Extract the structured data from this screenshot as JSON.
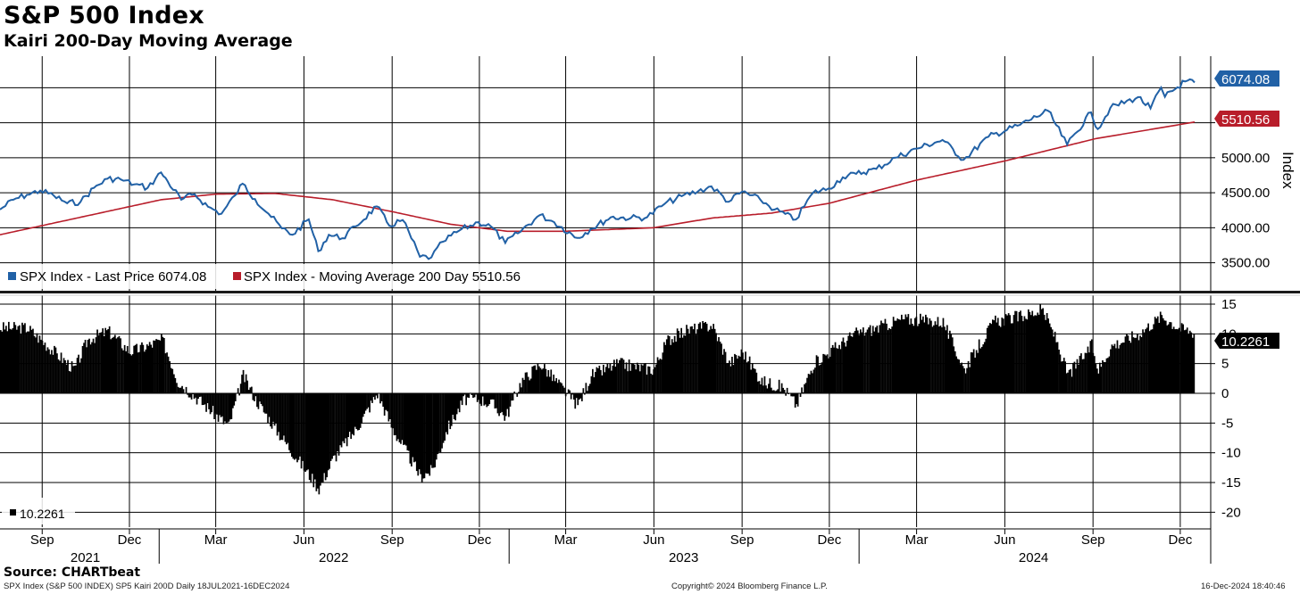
{
  "header": {
    "title": "S&P 500 Index",
    "subtitle": "Kairi 200-Day Moving Average"
  },
  "footer": {
    "source": "Source: CHARTbeat",
    "left": "SPX Index (S&P 500 INDEX) SP5 Kairi 200D  Daily 18JUL2021-16DEC2024",
    "center": "Copyright© 2024 Bloomberg Finance L.P.",
    "right": "16-Dec-2024 18:40:46"
  },
  "colors": {
    "price": "#2161a6",
    "moving_average": "#b81d2a",
    "kairi": "#000000",
    "grid": "#000000"
  },
  "chart_data": [
    {
      "type": "line",
      "x_range": [
        "2021-07-19",
        "2024-12-16"
      ],
      "ylabel": "Index",
      "ylim": [
        3100,
        6450
      ],
      "yticks": [
        3500,
        4000,
        4500,
        5000,
        5500,
        6000
      ],
      "ytick_labels": [
        "3500.00",
        "4000.00",
        "4500.00",
        "5000.00",
        "",
        ""
      ],
      "grid": true,
      "legend_position": "bottom-left",
      "series": [
        {
          "name": "SPX Index - Last Price 6074.08",
          "last_value_label": "6074.08",
          "points": [
            [
              "2021-07-19",
              4260
            ],
            [
              "2021-08-02",
              4400
            ],
            [
              "2021-08-16",
              4470
            ],
            [
              "2021-08-30",
              4530
            ],
            [
              "2021-09-13",
              4460
            ],
            [
              "2021-09-27",
              4350
            ],
            [
              "2021-10-11",
              4370
            ],
            [
              "2021-10-25",
              4570
            ],
            [
              "2021-11-08",
              4700
            ],
            [
              "2021-11-22",
              4690
            ],
            [
              "2021-12-06",
              4620
            ],
            [
              "2021-12-20",
              4570
            ],
            [
              "2022-01-03",
              4790
            ],
            [
              "2022-01-10",
              4660
            ],
            [
              "2022-01-24",
              4400
            ],
            [
              "2022-02-07",
              4480
            ],
            [
              "2022-02-21",
              4300
            ],
            [
              "2022-03-07",
              4200
            ],
            [
              "2022-03-21",
              4460
            ],
            [
              "2022-03-29",
              4630
            ],
            [
              "2022-04-11",
              4410
            ],
            [
              "2022-04-25",
              4200
            ],
            [
              "2022-05-09",
              3990
            ],
            [
              "2022-05-20",
              3900
            ],
            [
              "2022-06-06",
              4120
            ],
            [
              "2022-06-16",
              3666
            ],
            [
              "2022-06-27",
              3900
            ],
            [
              "2022-07-11",
              3850
            ],
            [
              "2022-07-25",
              4020
            ],
            [
              "2022-08-16",
              4305
            ],
            [
              "2022-08-29",
              4030
            ],
            [
              "2022-09-12",
              4110
            ],
            [
              "2022-09-30",
              3585
            ],
            [
              "2022-10-12",
              3577
            ],
            [
              "2022-10-24",
              3800
            ],
            [
              "2022-11-10",
              3960
            ],
            [
              "2022-11-30",
              4080
            ],
            [
              "2022-12-13",
              4020
            ],
            [
              "2022-12-28",
              3783
            ],
            [
              "2023-01-10",
              3920
            ],
            [
              "2023-02-02",
              4180
            ],
            [
              "2023-02-17",
              4080
            ],
            [
              "2023-03-13",
              3855
            ],
            [
              "2023-03-27",
              3980
            ],
            [
              "2023-04-17",
              4150
            ],
            [
              "2023-05-08",
              4140
            ],
            [
              "2023-05-25",
              4150
            ],
            [
              "2023-06-12",
              4340
            ],
            [
              "2023-06-30",
              4450
            ],
            [
              "2023-07-17",
              4520
            ],
            [
              "2023-07-31",
              4590
            ],
            [
              "2023-08-18",
              4370
            ],
            [
              "2023-09-01",
              4515
            ],
            [
              "2023-09-20",
              4400
            ],
            [
              "2023-10-05",
              4260
            ],
            [
              "2023-10-27",
              4117
            ],
            [
              "2023-11-14",
              4500
            ],
            [
              "2023-11-30",
              4560
            ],
            [
              "2023-12-15",
              4720
            ],
            [
              "2023-12-29",
              4770
            ],
            [
              "2024-01-19",
              4840
            ],
            [
              "2024-02-08",
              5000
            ],
            [
              "2024-03-01",
              5130
            ],
            [
              "2024-03-28",
              5254
            ],
            [
              "2024-04-19",
              4970
            ],
            [
              "2024-05-15",
              5300
            ],
            [
              "2024-06-17",
              5470
            ],
            [
              "2024-07-16",
              5670
            ],
            [
              "2024-08-05",
              5186
            ],
            [
              "2024-08-30",
              5648
            ],
            [
              "2024-09-06",
              5408
            ],
            [
              "2024-09-19",
              5710
            ],
            [
              "2024-10-18",
              5865
            ],
            [
              "2024-10-31",
              5705
            ],
            [
              "2024-11-11",
              6001
            ],
            [
              "2024-11-15",
              5870
            ],
            [
              "2024-12-06",
              6090
            ],
            [
              "2024-12-16",
              6074
            ]
          ]
        },
        {
          "name": "SPX Index - Moving Average 200 Day 5510.56",
          "last_value_label": "5510.56",
          "points": [
            [
              "2021-07-19",
              3900
            ],
            [
              "2021-10-01",
              4120
            ],
            [
              "2022-01-03",
              4400
            ],
            [
              "2022-03-01",
              4480
            ],
            [
              "2022-05-02",
              4490
            ],
            [
              "2022-07-01",
              4400
            ],
            [
              "2022-09-01",
              4230
            ],
            [
              "2022-11-01",
              4050
            ],
            [
              "2022-12-30",
              3950
            ],
            [
              "2023-03-01",
              3950
            ],
            [
              "2023-06-01",
              4000
            ],
            [
              "2023-08-01",
              4140
            ],
            [
              "2023-10-02",
              4210
            ],
            [
              "2023-12-01",
              4350
            ],
            [
              "2024-03-01",
              4680
            ],
            [
              "2024-06-03",
              4960
            ],
            [
              "2024-09-03",
              5270
            ],
            [
              "2024-12-16",
              5510
            ]
          ]
        }
      ]
    },
    {
      "type": "bar",
      "x_range": [
        "2021-07-19",
        "2024-12-16"
      ],
      "ylim": [
        -22.5,
        16.5
      ],
      "yticks": [
        -20,
        -15,
        -10,
        -5,
        0,
        5,
        10,
        15
      ],
      "ytick_labels": [
        "-20",
        "-15",
        "-10",
        "-5",
        "0",
        "5",
        "10",
        "15"
      ],
      "grid": true,
      "legend_position": "bottom-left",
      "series": [
        {
          "name": "10.2261",
          "last_value_label": "10.2261",
          "points": [
            [
              "2021-07-19",
              11
            ],
            [
              "2021-08-16",
              11
            ],
            [
              "2021-09-06",
              8
            ],
            [
              "2021-10-04",
              4
            ],
            [
              "2021-10-18",
              9
            ],
            [
              "2021-11-08",
              10.5
            ],
            [
              "2021-12-01",
              7
            ],
            [
              "2021-12-20",
              8
            ],
            [
              "2022-01-04",
              9
            ],
            [
              "2022-01-20",
              2
            ],
            [
              "2022-02-10",
              -1
            ],
            [
              "2022-02-24",
              -3
            ],
            [
              "2022-03-14",
              -5.5
            ],
            [
              "2022-03-29",
              3
            ],
            [
              "2022-04-11",
              -1
            ],
            [
              "2022-05-02",
              -6
            ],
            [
              "2022-05-20",
              -10
            ],
            [
              "2022-06-16",
              -16
            ],
            [
              "2022-07-01",
              -11
            ],
            [
              "2022-07-25",
              -6
            ],
            [
              "2022-08-16",
              0
            ],
            [
              "2022-09-01",
              -6
            ],
            [
              "2022-09-30",
              -14
            ],
            [
              "2022-10-12",
              -13
            ],
            [
              "2022-10-28",
              -6
            ],
            [
              "2022-11-15",
              -1
            ],
            [
              "2022-12-01",
              -1
            ],
            [
              "2022-12-15",
              -2
            ],
            [
              "2022-12-28",
              -4
            ],
            [
              "2023-01-13",
              2
            ],
            [
              "2023-02-02",
              5
            ],
            [
              "2023-02-24",
              1
            ],
            [
              "2023-03-13",
              -2
            ],
            [
              "2023-03-27",
              3
            ],
            [
              "2023-04-24",
              5
            ],
            [
              "2023-05-31",
              4
            ],
            [
              "2023-06-15",
              9
            ],
            [
              "2023-07-03",
              10.5
            ],
            [
              "2023-07-31",
              11.5
            ],
            [
              "2023-08-18",
              5
            ],
            [
              "2023-09-01",
              7
            ],
            [
              "2023-09-21",
              2
            ],
            [
              "2023-10-13",
              1
            ],
            [
              "2023-10-27",
              -2
            ],
            [
              "2023-11-14",
              5
            ],
            [
              "2023-12-01",
              7
            ],
            [
              "2023-12-27",
              10
            ],
            [
              "2024-01-19",
              11
            ],
            [
              "2024-02-15",
              12.5
            ],
            [
              "2024-03-28",
              12
            ],
            [
              "2024-04-19",
              4
            ],
            [
              "2024-05-20",
              12
            ],
            [
              "2024-06-18",
              13
            ],
            [
              "2024-07-10",
              14
            ],
            [
              "2024-07-24",
              9
            ],
            [
              "2024-08-05",
              3
            ],
            [
              "2024-08-30",
              8
            ],
            [
              "2024-09-06",
              4
            ],
            [
              "2024-09-20",
              8
            ],
            [
              "2024-10-18",
              10
            ],
            [
              "2024-11-11",
              13
            ],
            [
              "2024-11-29",
              11
            ],
            [
              "2024-12-16",
              10.2
            ]
          ]
        }
      ]
    }
  ],
  "x_axis": {
    "months": [
      {
        "label": "Sep",
        "date": "2021-09-01"
      },
      {
        "label": "Dec",
        "date": "2021-12-01"
      },
      {
        "label": "Mar",
        "date": "2022-03-01"
      },
      {
        "label": "Jun",
        "date": "2022-06-01"
      },
      {
        "label": "Sep",
        "date": "2022-09-01"
      },
      {
        "label": "Dec",
        "date": "2022-12-01"
      },
      {
        "label": "Mar",
        "date": "2023-03-01"
      },
      {
        "label": "Jun",
        "date": "2023-06-01"
      },
      {
        "label": "Sep",
        "date": "2023-09-01"
      },
      {
        "label": "Dec",
        "date": "2023-12-01"
      },
      {
        "label": "Mar",
        "date": "2024-03-01"
      },
      {
        "label": "Jun",
        "date": "2024-06-01"
      },
      {
        "label": "Sep",
        "date": "2024-09-01"
      },
      {
        "label": "Dec",
        "date": "2024-12-01"
      }
    ],
    "years": [
      {
        "label": "2021",
        "date": "2021-10-16"
      },
      {
        "label": "2022",
        "date": "2022-07-02"
      },
      {
        "label": "2023",
        "date": "2023-07-02"
      },
      {
        "label": "2024",
        "date": "2024-07-01"
      }
    ],
    "year_boundaries": [
      "2022-01-01",
      "2023-01-01",
      "2024-01-01"
    ]
  }
}
